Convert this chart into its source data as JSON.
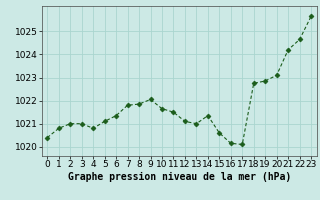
{
  "x": [
    0,
    1,
    2,
    3,
    4,
    5,
    6,
    7,
    8,
    9,
    10,
    11,
    12,
    13,
    14,
    15,
    16,
    17,
    18,
    19,
    20,
    21,
    22,
    23
  ],
  "y": [
    1020.4,
    1020.8,
    1021.0,
    1021.0,
    1020.8,
    1021.1,
    1021.35,
    1021.8,
    1021.85,
    1022.05,
    1021.65,
    1021.5,
    1021.1,
    1021.0,
    1021.35,
    1020.6,
    1020.15,
    1020.1,
    1022.75,
    1022.85,
    1023.1,
    1024.2,
    1024.65,
    1025.65
  ],
  "line_color": "#1a5c1a",
  "marker": "D",
  "marker_size": 2.5,
  "bg_color": "#cce9e5",
  "grid_color": "#aad5cf",
  "xlabel": "Graphe pression niveau de la mer (hPa)",
  "xlabel_fontsize": 7,
  "tick_fontsize": 6.5,
  "ylim": [
    1019.6,
    1026.1
  ],
  "xlim": [
    -0.5,
    23.5
  ],
  "yticks": [
    1020,
    1021,
    1022,
    1023,
    1024,
    1025
  ],
  "xticks": [
    0,
    1,
    2,
    3,
    4,
    5,
    6,
    7,
    8,
    9,
    10,
    11,
    12,
    13,
    14,
    15,
    16,
    17,
    18,
    19,
    20,
    21,
    22,
    23
  ]
}
